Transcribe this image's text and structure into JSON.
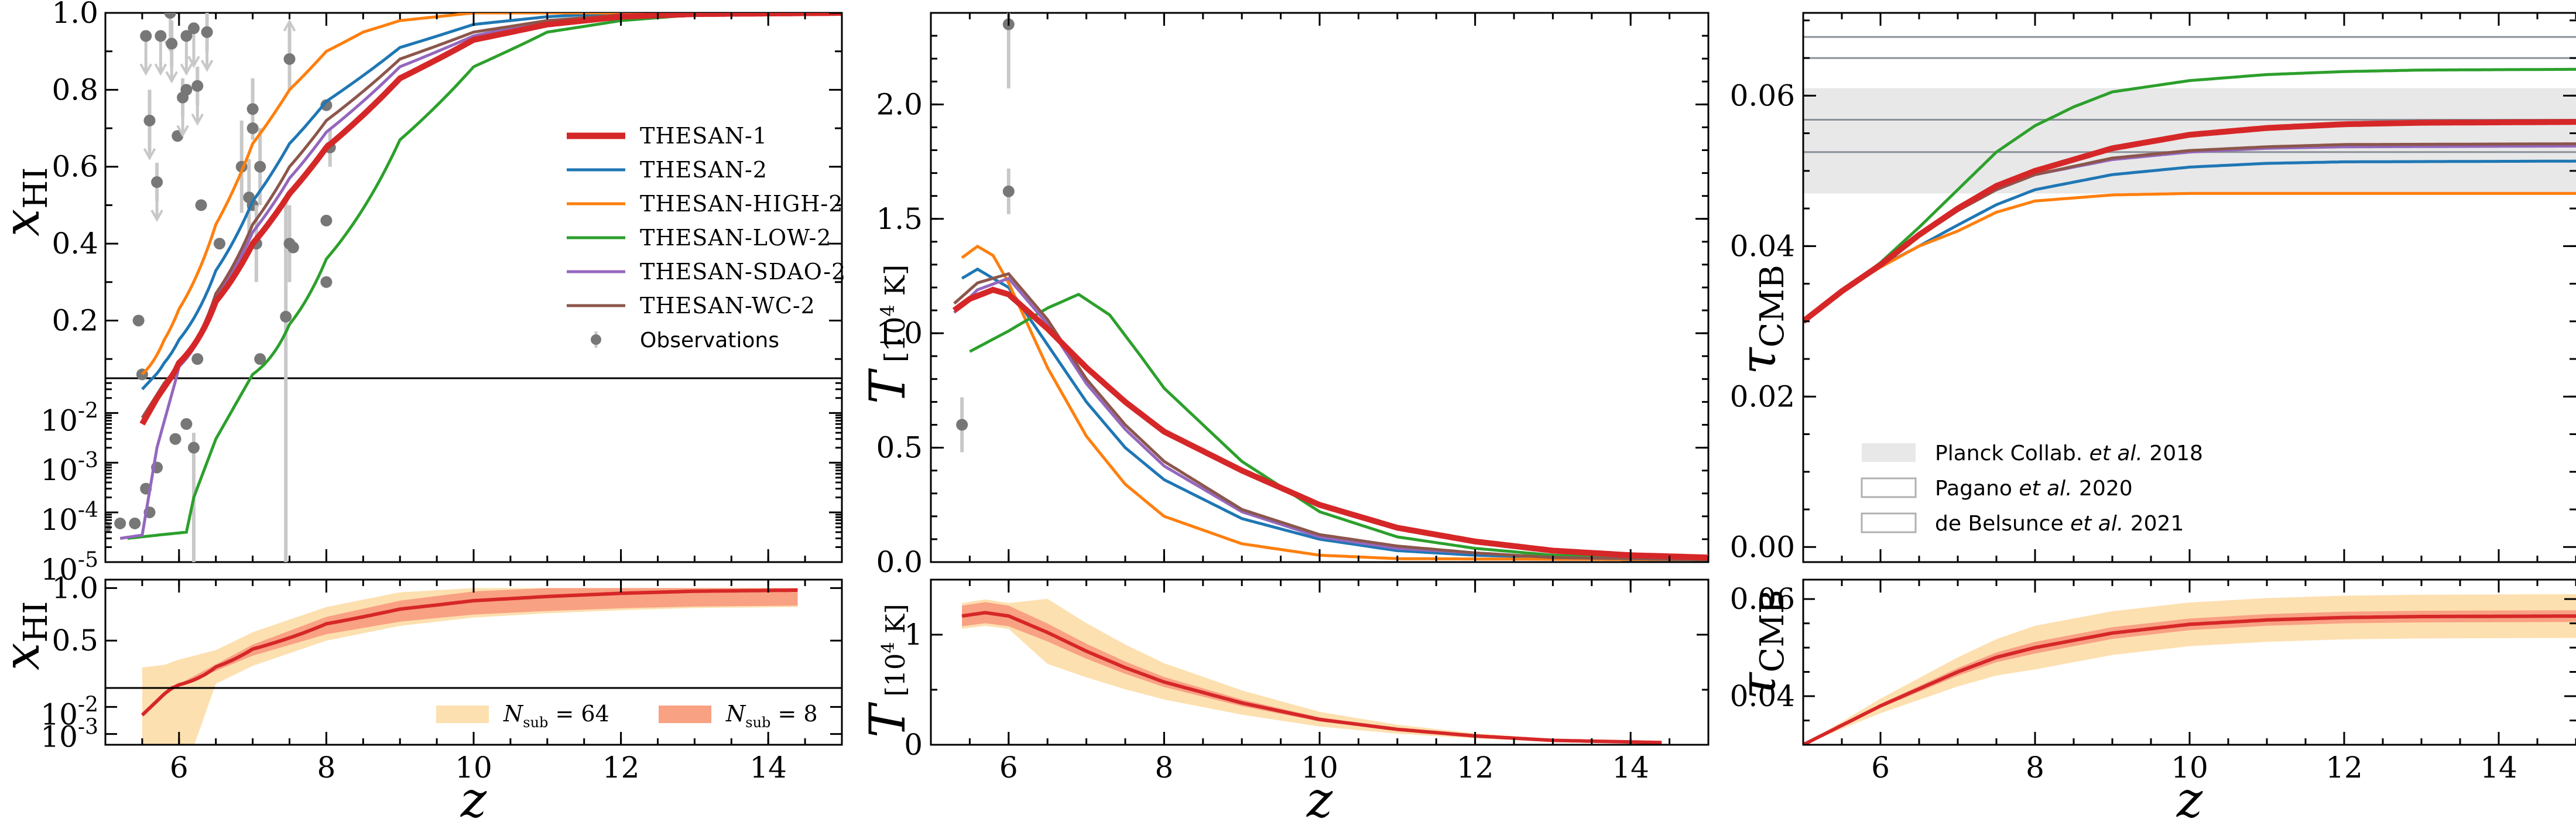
{
  "chart_data": [
    {
      "type": "line",
      "panel": "xHI main (upper linear / lower log)",
      "xlabel": "z",
      "ylabel": "x_HI",
      "xlim": [
        5,
        15
      ],
      "ylim_linear": [
        0.05,
        1.0
      ],
      "ylim_log": [
        1e-05,
        0.05
      ],
      "yticks_linear": [
        "0.2",
        "0.4",
        "0.6",
        "0.8",
        "1.0"
      ],
      "yticks_log": [
        "10^-5",
        "10^-4",
        "10^-3",
        "10^-2"
      ],
      "legend_position": "center-right",
      "series": [
        {
          "name": "THESAN-1",
          "color": "#d62728",
          "z": [
            5.5,
            5.7,
            6,
            6.5,
            7,
            7.5,
            8,
            9,
            10,
            11,
            12,
            13,
            15
          ],
          "values": [
            0.006,
            0.02,
            0.09,
            0.25,
            0.4,
            0.53,
            0.65,
            0.83,
            0.93,
            0.97,
            0.99,
            0.997,
            1.0
          ]
        },
        {
          "name": "THESAN-2",
          "color": "#1f77b4",
          "z": [
            5.5,
            5.8,
            6,
            6.5,
            7,
            7.5,
            8,
            9,
            10,
            11,
            12,
            15
          ],
          "values": [
            0.03,
            0.09,
            0.15,
            0.33,
            0.51,
            0.66,
            0.77,
            0.91,
            0.97,
            0.99,
            1.0,
            1.0
          ]
        },
        {
          "name": "THESAN-HIGH-2",
          "color": "#ff7f0e",
          "z": [
            5.5,
            5.8,
            6,
            6.5,
            7,
            7.5,
            8,
            8.5,
            9,
            10,
            15
          ],
          "values": [
            0.06,
            0.15,
            0.23,
            0.45,
            0.66,
            0.8,
            0.9,
            0.95,
            0.98,
            1.0,
            1.0
          ]
        },
        {
          "name": "THESAN-LOW-2",
          "color": "#2ca02c",
          "z": [
            5.3,
            5.8,
            6.1,
            6.2,
            6.5,
            7,
            7.5,
            8,
            9,
            10,
            11,
            12,
            13,
            15
          ],
          "values": [
            3e-05,
            3.6e-05,
            4e-05,
            0.0002,
            0.003,
            0.06,
            0.19,
            0.36,
            0.67,
            0.86,
            0.95,
            0.98,
            0.995,
            1.0
          ]
        },
        {
          "name": "THESAN-SDAO-2",
          "color": "#9467bd",
          "z": [
            5.2,
            5.5,
            5.7,
            6,
            6.5,
            7,
            7.5,
            8,
            9,
            10,
            11,
            12,
            15
          ],
          "values": [
            3e-05,
            3.5e-05,
            0.002,
            0.08,
            0.26,
            0.43,
            0.57,
            0.69,
            0.86,
            0.94,
            0.98,
            0.99,
            1.0
          ]
        },
        {
          "name": "THESAN-WC-2",
          "color": "#8c564b",
          "z": [
            5.5,
            5.8,
            6,
            6.5,
            7,
            7.5,
            8,
            9,
            10,
            11,
            12,
            15
          ],
          "values": [
            0.008,
            0.04,
            0.09,
            0.27,
            0.45,
            0.6,
            0.72,
            0.88,
            0.95,
            0.98,
            0.995,
            1.0
          ]
        }
      ],
      "observations": {
        "name": "Observations",
        "color": "#808080"
      }
    },
    {
      "type": "line",
      "panel": "T main",
      "xlabel": "z",
      "ylabel": "T [10^4 K]",
      "xlim": [
        5,
        15
      ],
      "ylim": [
        0,
        2.4
      ],
      "yticks": [
        "0.0",
        "0.5",
        "1.0",
        "1.5",
        "2.0"
      ],
      "series": [
        {
          "name": "THESAN-1",
          "color": "#d62728",
          "z": [
            5.3,
            5.5,
            5.8,
            6,
            6.5,
            7,
            7.5,
            8,
            9,
            10,
            11,
            12,
            13,
            14,
            15
          ],
          "values": [
            1.1,
            1.15,
            1.19,
            1.17,
            1.02,
            0.85,
            0.7,
            0.57,
            0.4,
            0.25,
            0.15,
            0.09,
            0.05,
            0.03,
            0.02
          ]
        },
        {
          "name": "THESAN-2",
          "color": "#1f77b4",
          "z": [
            5.4,
            5.6,
            6,
            6.5,
            7,
            7.5,
            8,
            9,
            10,
            11,
            12,
            13,
            14,
            15
          ],
          "values": [
            1.24,
            1.28,
            1.2,
            0.95,
            0.7,
            0.5,
            0.36,
            0.19,
            0.1,
            0.05,
            0.03,
            0.02,
            0.01,
            0.01
          ]
        },
        {
          "name": "THESAN-HIGH-2",
          "color": "#ff7f0e",
          "z": [
            5.4,
            5.6,
            5.8,
            6,
            6.5,
            7,
            7.5,
            8,
            9,
            10,
            11,
            15
          ],
          "values": [
            1.33,
            1.38,
            1.34,
            1.22,
            0.85,
            0.55,
            0.34,
            0.2,
            0.08,
            0.03,
            0.015,
            0.01
          ]
        },
        {
          "name": "THESAN-LOW-2",
          "color": "#2ca02c",
          "z": [
            5.5,
            6,
            6.5,
            6.9,
            7.3,
            7.7,
            8,
            9,
            10,
            11,
            12,
            13,
            14,
            15
          ],
          "values": [
            0.92,
            1.01,
            1.11,
            1.17,
            1.08,
            0.9,
            0.76,
            0.44,
            0.22,
            0.11,
            0.06,
            0.03,
            0.02,
            0.01
          ]
        },
        {
          "name": "THESAN-SDAO-2",
          "color": "#9467bd",
          "z": [
            5.3,
            5.6,
            6,
            6.5,
            7,
            7.5,
            8,
            9,
            10,
            11,
            12,
            13,
            15
          ],
          "values": [
            1.09,
            1.19,
            1.24,
            1.04,
            0.78,
            0.58,
            0.42,
            0.22,
            0.11,
            0.06,
            0.04,
            0.02,
            0.01
          ]
        },
        {
          "name": "THESAN-WC-2",
          "color": "#8c564b",
          "z": [
            5.3,
            5.6,
            6,
            6.5,
            7,
            7.5,
            8,
            9,
            10,
            11,
            12,
            13,
            15
          ],
          "values": [
            1.13,
            1.22,
            1.26,
            1.06,
            0.8,
            0.6,
            0.44,
            0.23,
            0.12,
            0.07,
            0.04,
            0.02,
            0.01
          ]
        }
      ]
    },
    {
      "type": "line",
      "panel": "tau main",
      "xlabel": "z",
      "ylabel": "τ_CMB",
      "xlim": [
        5,
        15
      ],
      "ylim": [
        -0.002,
        0.071
      ],
      "yticks": [
        "0.00",
        "0.02",
        "0.04",
        "0.06"
      ],
      "series": [
        {
          "name": "THESAN-1",
          "color": "#d62728",
          "z": [
            5,
            5.5,
            6,
            6.5,
            7,
            7.5,
            8,
            9,
            10,
            11,
            12,
            13,
            15
          ],
          "values": [
            0.03,
            0.034,
            0.0375,
            0.0415,
            0.045,
            0.048,
            0.05,
            0.053,
            0.0548,
            0.0557,
            0.0562,
            0.0564,
            0.0565
          ]
        },
        {
          "name": "THESAN-2",
          "color": "#1f77b4",
          "z": [
            5,
            5.5,
            6,
            6.5,
            7,
            7.5,
            8,
            9,
            10,
            11,
            12,
            15
          ],
          "values": [
            0.03,
            0.034,
            0.0373,
            0.04,
            0.0428,
            0.0455,
            0.0475,
            0.0495,
            0.0505,
            0.051,
            0.0512,
            0.0513
          ]
        },
        {
          "name": "THESAN-HIGH-2",
          "color": "#ff7f0e",
          "z": [
            5,
            5.5,
            6,
            6.5,
            7,
            7.5,
            8,
            9,
            10,
            15
          ],
          "values": [
            0.03,
            0.034,
            0.0372,
            0.04,
            0.042,
            0.0445,
            0.046,
            0.0468,
            0.047,
            0.047
          ]
        },
        {
          "name": "THESAN-LOW-2",
          "color": "#2ca02c",
          "z": [
            5,
            5.5,
            6,
            6.5,
            7,
            7.5,
            8,
            8.5,
            9,
            10,
            11,
            12,
            13,
            15
          ],
          "values": [
            0.03,
            0.034,
            0.0378,
            0.0425,
            0.0475,
            0.0525,
            0.056,
            0.0585,
            0.0605,
            0.062,
            0.0628,
            0.0632,
            0.0634,
            0.0635
          ]
        },
        {
          "name": "THESAN-SDAO-2",
          "color": "#9467bd",
          "z": [
            5,
            5.5,
            6,
            6.5,
            7,
            7.5,
            8,
            9,
            10,
            11,
            12,
            15
          ],
          "values": [
            0.03,
            0.034,
            0.0377,
            0.0415,
            0.0448,
            0.0475,
            0.0495,
            0.0515,
            0.0525,
            0.053,
            0.0532,
            0.0533
          ]
        },
        {
          "name": "THESAN-WC-2",
          "color": "#8c564b",
          "z": [
            5,
            5.5,
            6,
            6.5,
            7,
            7.5,
            8,
            9,
            10,
            11,
            12,
            15
          ],
          "values": [
            0.03,
            0.034,
            0.0376,
            0.0413,
            0.0447,
            0.0475,
            0.0495,
            0.0517,
            0.0527,
            0.0532,
            0.0535,
            0.0536
          ]
        }
      ],
      "reference_lines": [
        0.0525,
        0.0568,
        0.065,
        0.0678
      ],
      "planck_band": [
        0.047,
        0.061
      ],
      "legend": [
        {
          "label_parts": [
            "Planck Collab. ",
            "et al.",
            " 2018"
          ],
          "style": "filled"
        },
        {
          "label_parts": [
            "Pagano ",
            "et al.",
            " 2020"
          ],
          "style": "outline"
        },
        {
          "label_parts": [
            "de Belsunce ",
            "et al.",
            " 2021"
          ],
          "style": "outline"
        }
      ]
    },
    {
      "type": "area",
      "panel": "xHI bottom",
      "xlabel": "z",
      "ylabel": "x_HI",
      "xlim": [
        5,
        15
      ],
      "yticks_linear": [
        "0.5",
        "1.0"
      ],
      "yticks_log": [
        "10^-3",
        "10^-2"
      ],
      "xticks": [
        "6",
        "8",
        "10",
        "12",
        "14"
      ],
      "legend": [
        {
          "label_parts": [
            "N",
            "sub",
            " = 64"
          ],
          "color": "#fde0b0"
        },
        {
          "label_parts": [
            "N",
            "sub",
            " = 8"
          ],
          "color": "#f9a183"
        }
      ],
      "z": [
        5.5,
        5.8,
        6,
        6.5,
        7,
        8,
        9,
        10,
        11,
        12,
        13,
        14.4
      ],
      "median": [
        0.005,
        0.03,
        0.08,
        0.25,
        0.42,
        0.66,
        0.8,
        0.88,
        0.92,
        0.95,
        0.97,
        0.98
      ]
    },
    {
      "type": "area",
      "panel": "T bottom",
      "xlabel": "z",
      "ylabel": "T [10^4 K]",
      "xlim": [
        5,
        15
      ],
      "yticks": [
        "0",
        "1"
      ],
      "xticks": [
        "6",
        "8",
        "10",
        "12",
        "14"
      ],
      "z": [
        5.4,
        5.7,
        6,
        6.5,
        7,
        7.5,
        8,
        9,
        10,
        11,
        12,
        13,
        14.4
      ],
      "median": [
        1.17,
        1.2,
        1.17,
        1.02,
        0.85,
        0.7,
        0.57,
        0.38,
        0.23,
        0.14,
        0.08,
        0.04,
        0.02
      ]
    },
    {
      "type": "area",
      "panel": "tau bottom",
      "xlabel": "z",
      "ylabel": "τ_CMB",
      "xlim": [
        5,
        15
      ],
      "ylim": [
        0.03,
        0.064
      ],
      "yticks": [
        "0.04",
        "0.06"
      ],
      "xticks": [
        "6",
        "8",
        "10",
        "12",
        "14"
      ],
      "z": [
        5,
        5.5,
        6,
        6.5,
        7,
        7.5,
        8,
        9,
        10,
        11,
        12,
        13,
        15
      ],
      "median": [
        0.03,
        0.034,
        0.038,
        0.0415,
        0.045,
        0.048,
        0.05,
        0.053,
        0.0548,
        0.0557,
        0.0562,
        0.0564,
        0.0565
      ]
    }
  ],
  "legend_main": [
    {
      "name": "THESAN-1",
      "color": "#d62728",
      "width": 11
    },
    {
      "name": "THESAN-2",
      "color": "#1f77b4",
      "width": 5
    },
    {
      "name": "THESAN-HIGH-2",
      "color": "#ff7f0e",
      "width": 5
    },
    {
      "name": "THESAN-LOW-2",
      "color": "#2ca02c",
      "width": 5
    },
    {
      "name": "THESAN-SDAO-2",
      "color": "#9467bd",
      "width": 5
    },
    {
      "name": "THESAN-WC-2",
      "color": "#8c564b",
      "width": 5
    }
  ],
  "legend_obs": "Observations",
  "axis_text": {
    "z": "z",
    "x": "x",
    "x_sub": "HI",
    "T_italic": "T",
    "T_rest": " [10",
    "T_exp": "4",
    "T_unit": " K]",
    "tau": "τ",
    "tau_sub": "CMB"
  }
}
